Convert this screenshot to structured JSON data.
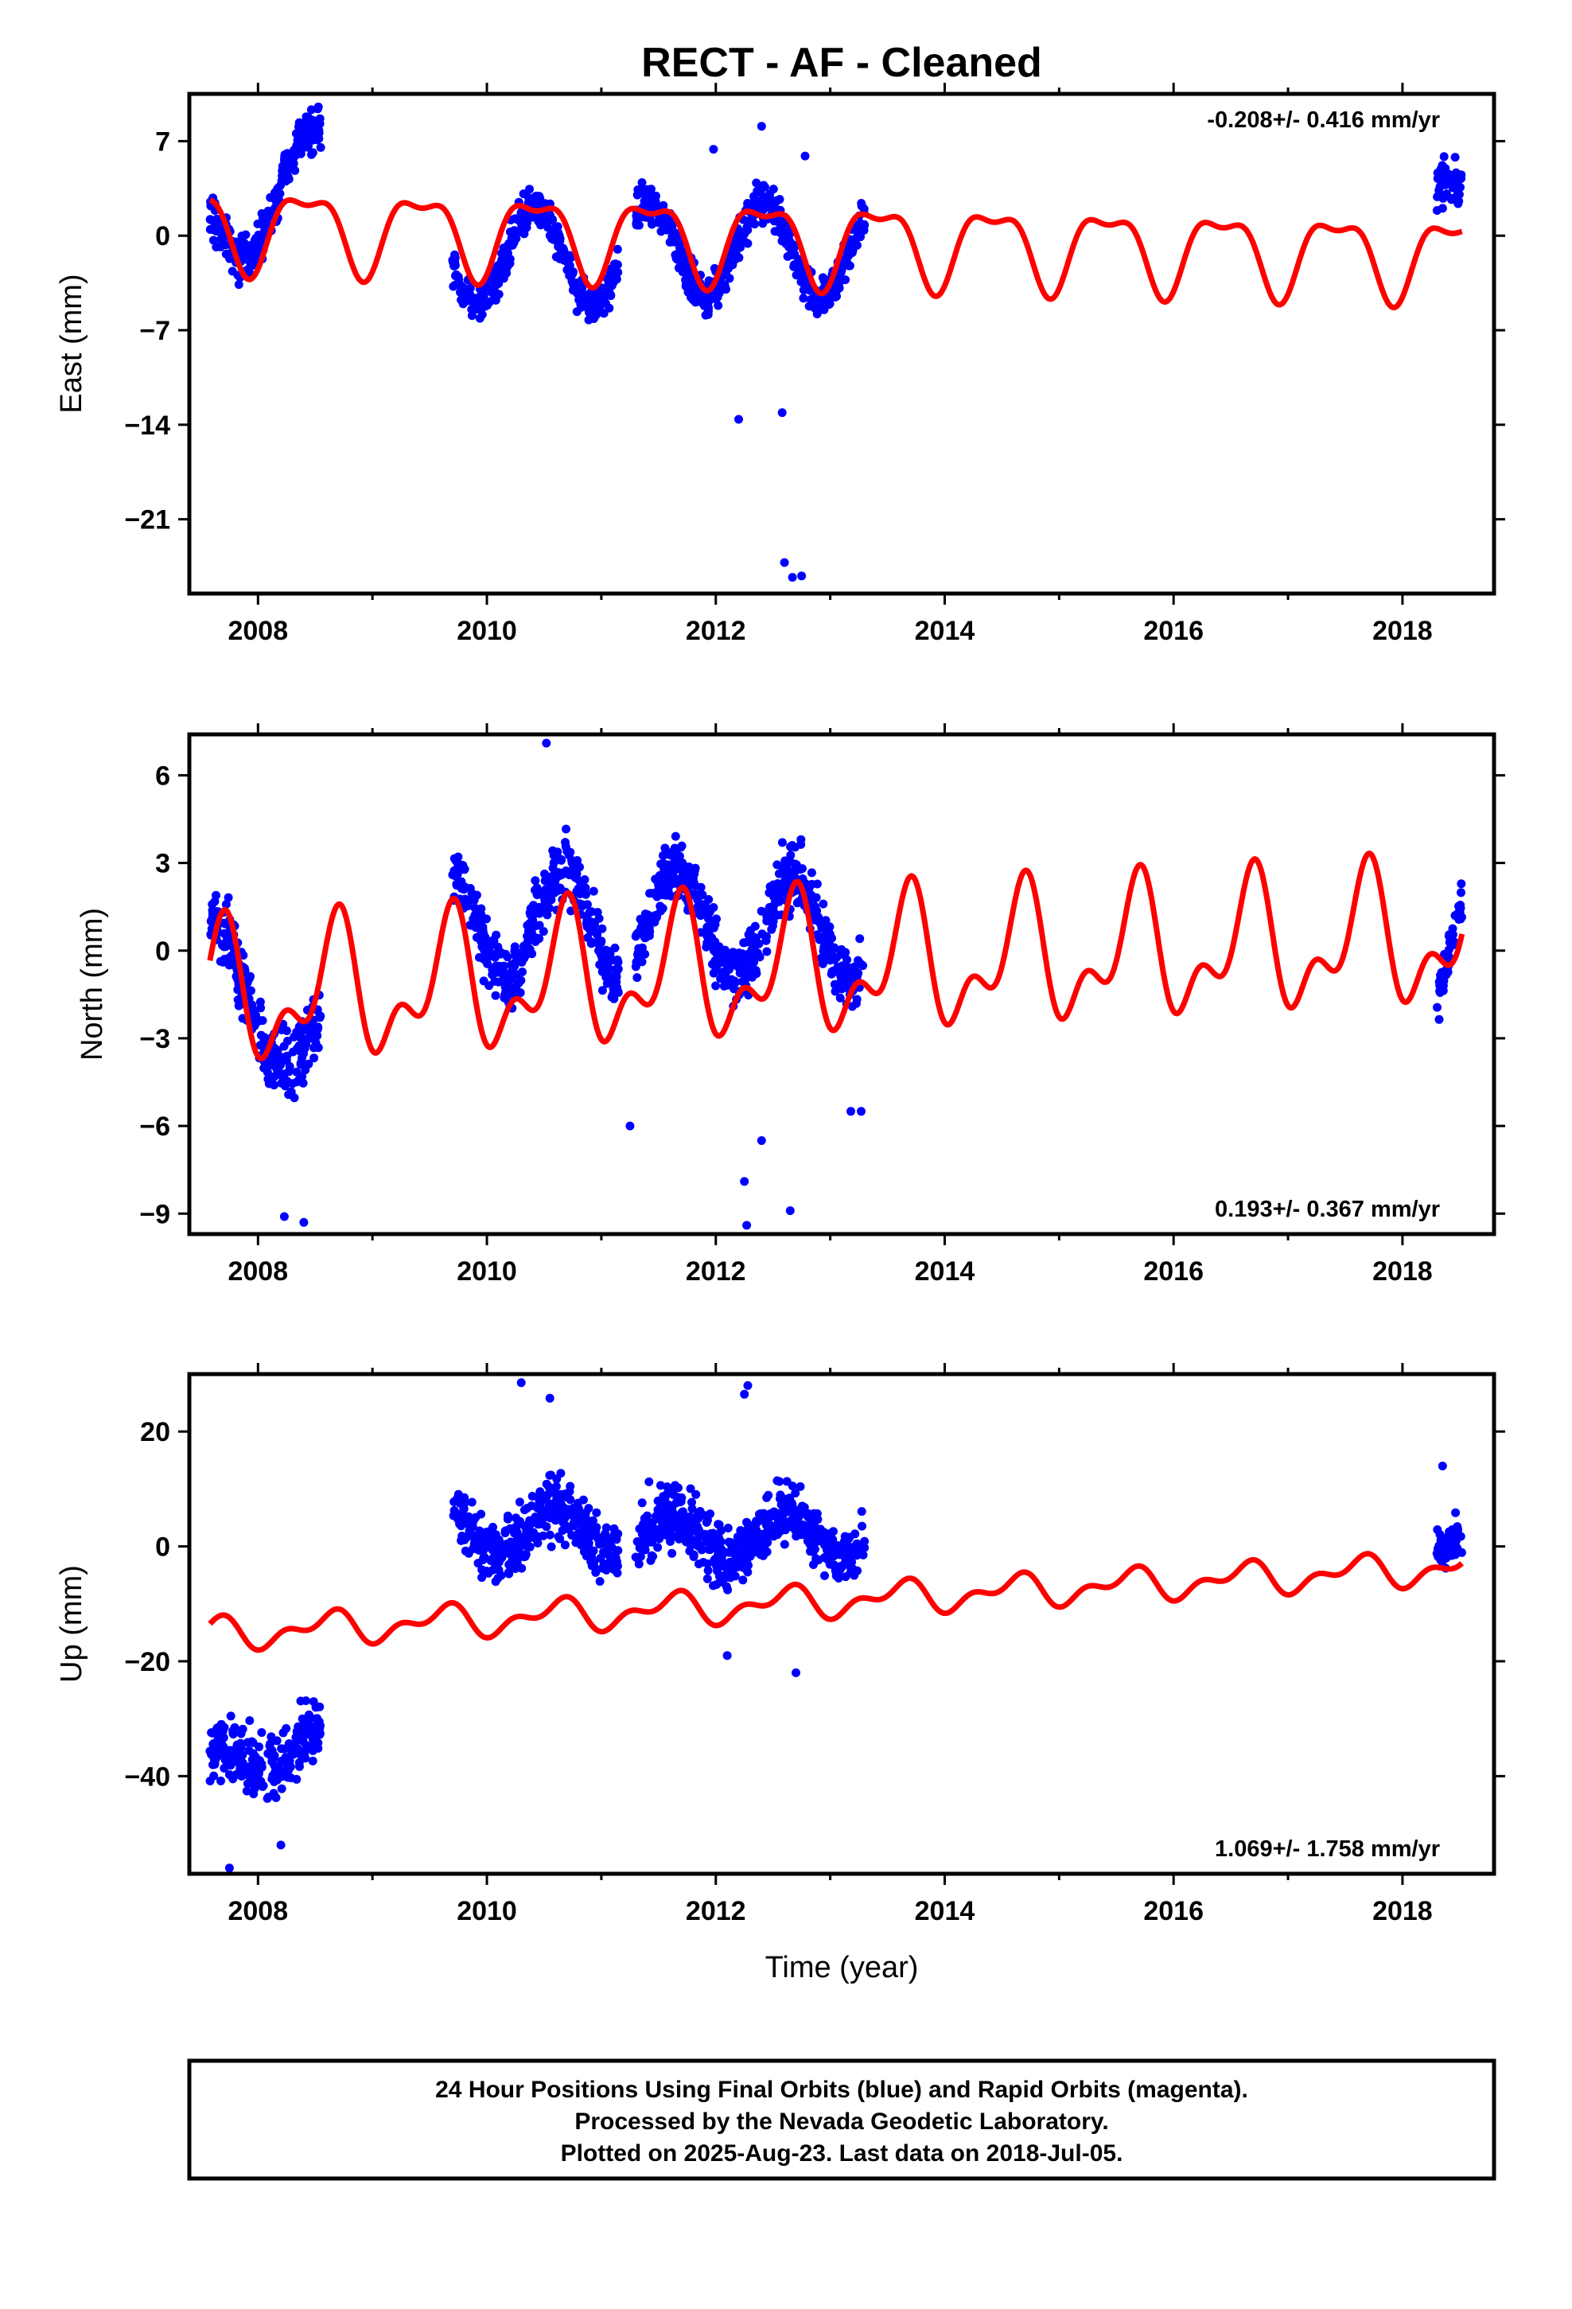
{
  "title": "RECT  - AF - Cleaned",
  "xlabel": "Time (year)",
  "footer": {
    "line1": "24 Hour Positions Using Final Orbits (blue) and Rapid Orbits (magenta).",
    "line2": "Processed by the Nevada Geodetic Laboratory.",
    "line3": "Plotted on 2025-Aug-23. Last data on 2018-Jul-05."
  },
  "colors": {
    "data": "#0000ff",
    "model": "#ff0000",
    "axis": "#000000"
  },
  "chart_data": [
    {
      "type": "scatter",
      "component": "east",
      "ylabel": "East (mm)",
      "rate_label": "-0.208+/- 0.416 mm/yr",
      "rate_position": "top-right",
      "xlim": [
        2007.4,
        2018.8
      ],
      "ylim": [
        -26.5,
        10.5
      ],
      "xticks": [
        2008,
        2010,
        2012,
        2014,
        2016,
        2018
      ],
      "yticks": [
        7,
        0,
        -7,
        -14,
        -21
      ],
      "segments": [
        {
          "start": 2007.58,
          "end": 2008.55,
          "amp": 3.5,
          "trend": 5,
          "offset": 2.5,
          "spread": 1.6
        },
        {
          "start": 2009.7,
          "end": 2011.15,
          "amp": 3.6,
          "trend": 0,
          "offset": -1.5,
          "spread": 1.3
        },
        {
          "start": 2011.3,
          "end": 2013.3,
          "amp": 3.4,
          "trend": 0,
          "offset": -1.0,
          "spread": 1.4
        },
        {
          "start": 2018.3,
          "end": 2018.52,
          "amp": 2.0,
          "trend": 0,
          "offset": 2.0,
          "spread": 1.3
        }
      ],
      "outliers": [
        [
          2012.2,
          -13.6
        ],
        [
          2012.58,
          -13.1
        ],
        [
          2012.6,
          -24.2
        ],
        [
          2012.67,
          -25.3
        ],
        [
          2012.75,
          -25.2
        ],
        [
          2012.4,
          8.1
        ],
        [
          2011.98,
          6.4
        ],
        [
          2012.78,
          5.9
        ]
      ],
      "model": {
        "offset": -0.4,
        "trend": -0.208,
        "annual_amp": 2.8,
        "annual_phase": 0.17,
        "semi_amp": 1.1,
        "semi_phase": 0.05,
        "start": 2007.58,
        "end": 2018.52
      }
    },
    {
      "type": "scatter",
      "component": "north",
      "ylabel": "North (mm)",
      "rate_label": "0.193+/- 0.367 mm/yr",
      "rate_position": "bottom-right",
      "xlim": [
        2007.4,
        2018.8
      ],
      "ylim": [
        -9.7,
        7.4
      ],
      "xticks": [
        2008,
        2010,
        2012,
        2014,
        2016,
        2018
      ],
      "yticks": [
        6,
        3,
        0,
        -3,
        -6,
        -9
      ],
      "segments": [
        {
          "start": 2007.58,
          "end": 2008.55,
          "amp": 1.5,
          "trend": -3.0,
          "offset": -2.0,
          "spread": 1.1
        },
        {
          "start": 2009.7,
          "end": 2011.15,
          "amp": 1.8,
          "trend": 0,
          "offset": 0.9,
          "spread": 1.0
        },
        {
          "start": 2011.3,
          "end": 2013.3,
          "amp": 1.7,
          "trend": -0.5,
          "offset": 0.9,
          "spread": 1.0
        },
        {
          "start": 2018.3,
          "end": 2018.52,
          "amp": 1.0,
          "trend": 2.0,
          "offset": 0.0,
          "spread": 0.8
        }
      ],
      "outliers": [
        [
          2010.52,
          7.1
        ],
        [
          2008.4,
          -9.3
        ],
        [
          2008.23,
          -9.1
        ],
        [
          2012.25,
          -7.9
        ],
        [
          2012.27,
          -9.4
        ],
        [
          2012.65,
          -8.9
        ],
        [
          2012.4,
          -6.5
        ],
        [
          2011.25,
          -6.0
        ],
        [
          2013.27,
          -5.5
        ],
        [
          2013.18,
          -5.5
        ]
      ],
      "model": {
        "offset": -0.6,
        "trend": 0.193,
        "annual_amp": 1.9,
        "annual_phase": 0.42,
        "semi_amp": 1.2,
        "semi_phase": 0.1,
        "start": 2007.58,
        "end": 2018.52
      }
    },
    {
      "type": "scatter",
      "component": "up",
      "ylabel": "Up (mm)",
      "rate_label": "1.069+/- 1.758 mm/yr",
      "rate_position": "bottom-right",
      "xlim": [
        2007.4,
        2018.8
      ],
      "ylim": [
        -57,
        30
      ],
      "xticks": [
        2008,
        2010,
        2012,
        2014,
        2016,
        2018
      ],
      "yticks": [
        20,
        0,
        -20,
        -40
      ],
      "segments": [
        {
          "start": 2007.58,
          "end": 2008.55,
          "amp": 3.0,
          "trend": 5,
          "offset": -36,
          "spread": 5.0
        },
        {
          "start": 2009.7,
          "end": 2011.15,
          "amp": 4.0,
          "trend": 0,
          "offset": 3.0,
          "spread": 5.0
        },
        {
          "start": 2011.3,
          "end": 2013.3,
          "amp": 4.0,
          "trend": 0,
          "offset": 2.0,
          "spread": 5.0
        },
        {
          "start": 2018.3,
          "end": 2018.52,
          "amp": 2.0,
          "trend": 0,
          "offset": -1.0,
          "spread": 3.5
        }
      ],
      "outliers": [
        [
          2010.3,
          28.5
        ],
        [
          2010.55,
          25.8
        ],
        [
          2012.28,
          28.0
        ],
        [
          2012.25,
          26.5
        ],
        [
          2007.75,
          -56
        ],
        [
          2008.2,
          -52
        ],
        [
          2012.7,
          -22
        ],
        [
          2012.1,
          -19
        ],
        [
          2018.35,
          14
        ]
      ],
      "model": {
        "offset": -9.5,
        "trend": 1.069,
        "annual_amp": 2.2,
        "annual_phase": 0.35,
        "semi_amp": 1.5,
        "semi_phase": 0.1,
        "start": 2007.58,
        "end": 2018.52
      }
    }
  ]
}
